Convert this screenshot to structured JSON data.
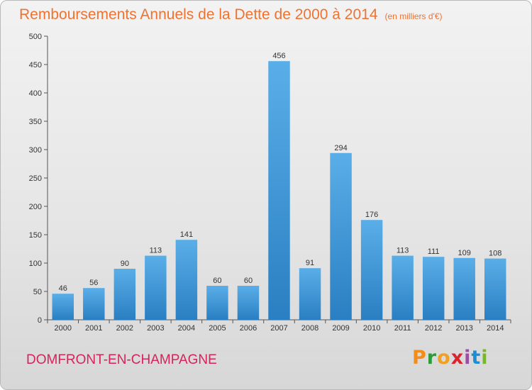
{
  "header": {
    "title": "Remboursements Annuels de la Dette de 2000 à 2014",
    "unit": "(en milliers d'€)"
  },
  "footer": {
    "commune": "DOMFRONT-EN-CHAMPAGNE",
    "logo_letters": [
      "P",
      "r",
      "o",
      "x",
      "i",
      "t",
      "i"
    ],
    "logo_colors": [
      "#f28c1a",
      "#2d9b3a",
      "#f0a022",
      "#d9232e",
      "#9b4ea3",
      "#1a8fd8",
      "#76b82a"
    ]
  },
  "colors": {
    "bar_light": "#5aaee8",
    "bar_dark": "#2a7fc2",
    "title": "#ee7330",
    "commune": "#d6235c"
  },
  "chart_data": {
    "type": "bar",
    "title": "Remboursements Annuels de la Dette de 2000 à 2014",
    "subtitle": "(en milliers d'€)",
    "xlabel": "",
    "ylabel": "",
    "categories": [
      "2000",
      "2001",
      "2002",
      "2003",
      "2004",
      "2005",
      "2006",
      "2007",
      "2008",
      "2009",
      "2010",
      "2011",
      "2012",
      "2013",
      "2014"
    ],
    "values": [
      46,
      56,
      90,
      113,
      141,
      60,
      60,
      456,
      91,
      294,
      176,
      113,
      111,
      109,
      108
    ],
    "ylim": [
      0,
      500
    ],
    "yticks": [
      0,
      50,
      100,
      150,
      200,
      250,
      300,
      350,
      400,
      450,
      500
    ],
    "grid": false,
    "legend": "none"
  }
}
